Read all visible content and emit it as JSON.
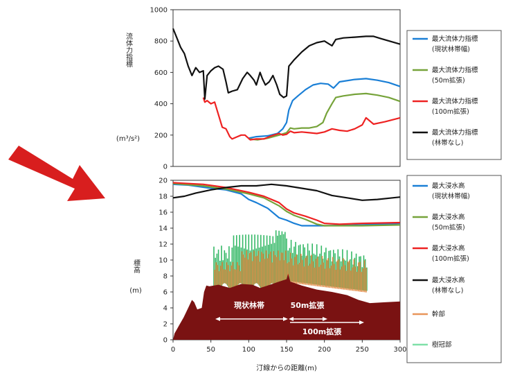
{
  "chart_data": [
    {
      "type": "line",
      "ylabel": "流体力指標",
      "yunit": "(m³/s²)",
      "ylim": [
        0,
        1000
      ],
      "yticks": [
        0,
        200,
        400,
        600,
        800,
        1000
      ],
      "xlim": [
        0,
        300
      ],
      "grid": false,
      "legend_position": "right",
      "series": [
        {
          "name": "最大流体力指標",
          "name2": "(現状林帯幅)",
          "color": "#1a7fd6",
          "points": [
            [
              100,
              180
            ],
            [
              110,
              190
            ],
            [
              125,
              195
            ],
            [
              138,
              210
            ],
            [
              145,
              240
            ],
            [
              150,
              280
            ],
            [
              153,
              360
            ],
            [
              158,
              420
            ],
            [
              165,
              450
            ],
            [
              175,
              490
            ],
            [
              185,
              520
            ],
            [
              195,
              530
            ],
            [
              205,
              525
            ],
            [
              212,
              500
            ],
            [
              220,
              540
            ],
            [
              240,
              555
            ],
            [
              255,
              560
            ],
            [
              270,
              550
            ],
            [
              285,
              535
            ],
            [
              300,
              510
            ]
          ]
        },
        {
          "name": "最大流体力指標",
          "name2": "(50m拡張)",
          "color": "#76a33a",
          "points": [
            [
              100,
              175
            ],
            [
              112,
              170
            ],
            [
              125,
              180
            ],
            [
              140,
              200
            ],
            [
              150,
              215
            ],
            [
              155,
              245
            ],
            [
              160,
              240
            ],
            [
              170,
              245
            ],
            [
              180,
              245
            ],
            [
              190,
              255
            ],
            [
              198,
              280
            ],
            [
              203,
              340
            ],
            [
              210,
              400
            ],
            [
              215,
              440
            ],
            [
              225,
              450
            ],
            [
              240,
              460
            ],
            [
              255,
              465
            ],
            [
              270,
              455
            ],
            [
              285,
              440
            ],
            [
              300,
              415
            ]
          ]
        },
        {
          "name": "最大流体力指標",
          "name2": "(100m拡張)",
          "color": "#ee2222",
          "points": [
            [
              40,
              440
            ],
            [
              42,
              410
            ],
            [
              45,
              420
            ],
            [
              50,
              400
            ],
            [
              55,
              410
            ],
            [
              60,
              330
            ],
            [
              65,
              250
            ],
            [
              70,
              240
            ],
            [
              75,
              190
            ],
            [
              78,
              175
            ],
            [
              85,
              190
            ],
            [
              90,
              200
            ],
            [
              95,
              200
            ],
            [
              102,
              170
            ],
            [
              110,
              175
            ],
            [
              120,
              175
            ],
            [
              130,
              195
            ],
            [
              140,
              210
            ],
            [
              145,
              200
            ],
            [
              150,
              205
            ],
            [
              155,
              225
            ],
            [
              160,
              215
            ],
            [
              170,
              220
            ],
            [
              180,
              215
            ],
            [
              190,
              210
            ],
            [
              200,
              220
            ],
            [
              210,
              240
            ],
            [
              220,
              230
            ],
            [
              230,
              225
            ],
            [
              240,
              240
            ],
            [
              250,
              265
            ],
            [
              255,
              310
            ],
            [
              260,
              290
            ],
            [
              265,
              270
            ],
            [
              280,
              285
            ],
            [
              300,
              310
            ]
          ]
        },
        {
          "name": "最大流体力指標",
          "name2": "(林帯なし)",
          "color": "#111111",
          "points": [
            [
              0,
              880
            ],
            [
              5,
              820
            ],
            [
              10,
              760
            ],
            [
              15,
              720
            ],
            [
              20,
              640
            ],
            [
              25,
              580
            ],
            [
              30,
              630
            ],
            [
              35,
              600
            ],
            [
              40,
              610
            ],
            [
              42,
              430
            ],
            [
              45,
              580
            ],
            [
              50,
              610
            ],
            [
              55,
              630
            ],
            [
              60,
              640
            ],
            [
              66,
              620
            ],
            [
              70,
              540
            ],
            [
              73,
              470
            ],
            [
              78,
              480
            ],
            [
              85,
              490
            ],
            [
              92,
              560
            ],
            [
              98,
              600
            ],
            [
              102,
              580
            ],
            [
              107,
              550
            ],
            [
              110,
              520
            ],
            [
              115,
              600
            ],
            [
              118,
              560
            ],
            [
              122,
              520
            ],
            [
              127,
              540
            ],
            [
              132,
              580
            ],
            [
              137,
              520
            ],
            [
              141,
              460
            ],
            [
              146,
              440
            ],
            [
              150,
              450
            ],
            [
              153,
              640
            ],
            [
              160,
              680
            ],
            [
              170,
              730
            ],
            [
              180,
              770
            ],
            [
              190,
              790
            ],
            [
              200,
              800
            ],
            [
              205,
              785
            ],
            [
              210,
              770
            ],
            [
              215,
              810
            ],
            [
              225,
              820
            ],
            [
              240,
              825
            ],
            [
              255,
              830
            ],
            [
              265,
              830
            ],
            [
              275,
              815
            ],
            [
              300,
              780
            ]
          ]
        }
      ]
    },
    {
      "type": "area",
      "ylabel": "標高",
      "yunit": "(m)",
      "xlabel": "汀線からの距離(m)",
      "ylim": [
        0,
        20
      ],
      "yticks": [
        0,
        2,
        4,
        6,
        8,
        10,
        12,
        14,
        16,
        18,
        20
      ],
      "xlim": [
        0,
        300
      ],
      "xticks": [
        0,
        50,
        100,
        150,
        200,
        250,
        300
      ],
      "grid": false,
      "legend_position": "right",
      "series": [
        {
          "name": "最大浸水高",
          "name2": "(現状林帯幅)",
          "color": "#1a7fd6",
          "points": [
            [
              0,
              19.5
            ],
            [
              20,
              19.4
            ],
            [
              50,
              19.0
            ],
            [
              70,
              18.8
            ],
            [
              90,
              18.3
            ],
            [
              100,
              17.6
            ],
            [
              110,
              17.2
            ],
            [
              125,
              16.5
            ],
            [
              140,
              15.3
            ],
            [
              150,
              15.0
            ],
            [
              160,
              14.6
            ],
            [
              170,
              14.3
            ],
            [
              200,
              14.3
            ],
            [
              250,
              14.4
            ],
            [
              300,
              14.6
            ]
          ]
        },
        {
          "name": "最大浸水高",
          "name2": "(50m拡張)",
          "color": "#76a33a",
          "points": [
            [
              0,
              19.6
            ],
            [
              40,
              19.3
            ],
            [
              70,
              18.9
            ],
            [
              100,
              18.3
            ],
            [
              120,
              17.8
            ],
            [
              140,
              16.8
            ],
            [
              150,
              16.1
            ],
            [
              160,
              15.6
            ],
            [
              175,
              15.1
            ],
            [
              190,
              14.5
            ],
            [
              200,
              14.3
            ],
            [
              250,
              14.3
            ],
            [
              300,
              14.4
            ]
          ]
        },
        {
          "name": "最大浸水高",
          "name2": "(100m拡張)",
          "color": "#ee2222",
          "points": [
            [
              0,
              19.7
            ],
            [
              40,
              19.5
            ],
            [
              70,
              19.1
            ],
            [
              100,
              18.5
            ],
            [
              120,
              18.0
            ],
            [
              140,
              17.2
            ],
            [
              150,
              16.4
            ],
            [
              160,
              15.9
            ],
            [
              175,
              15.5
            ],
            [
              190,
              15.0
            ],
            [
              200,
              14.6
            ],
            [
              220,
              14.5
            ],
            [
              250,
              14.6
            ],
            [
              300,
              14.7
            ]
          ]
        },
        {
          "name": "最大浸水高",
          "name2": "(林帯なし)",
          "color": "#111111",
          "points": [
            [
              0,
              17.8
            ],
            [
              15,
              18.0
            ],
            [
              30,
              18.4
            ],
            [
              50,
              18.8
            ],
            [
              70,
              19.1
            ],
            [
              90,
              19.3
            ],
            [
              110,
              19.3
            ],
            [
              130,
              19.5
            ],
            [
              150,
              19.3
            ],
            [
              170,
              19.0
            ],
            [
              190,
              18.7
            ],
            [
              210,
              18.1
            ],
            [
              230,
              17.8
            ],
            [
              250,
              17.5
            ],
            [
              270,
              17.6
            ],
            [
              290,
              17.8
            ],
            [
              300,
              17.9
            ]
          ]
        },
        {
          "name": "幹部",
          "color": "#e8955a"
        },
        {
          "name": "樹冠部",
          "color": "#7fe0a8"
        }
      ],
      "annotations": {
        "current": "現状林帯",
        "ext50": "50m拡張",
        "ext100": "100m拡張"
      }
    }
  ]
}
